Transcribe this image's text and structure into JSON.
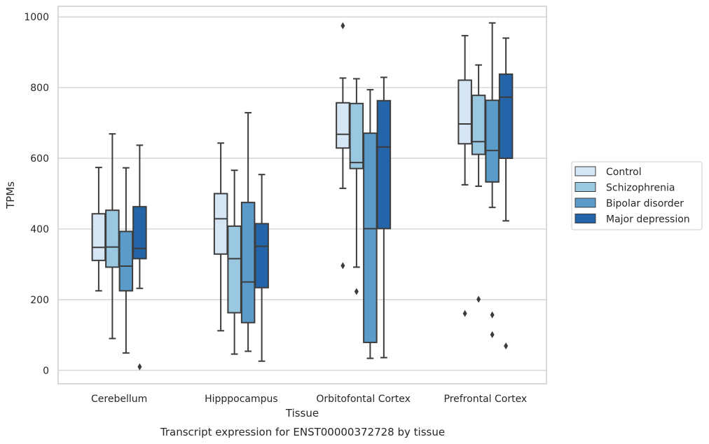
{
  "chart_data": {
    "type": "box",
    "title": "Transcript expression for ENST00000372728 by tissue",
    "xlabel": "Tissue",
    "ylabel": "TPMs",
    "ylim": [
      -38,
      1030
    ],
    "yticks": [
      0,
      200,
      400,
      600,
      800,
      1000
    ],
    "grid": "horizontal",
    "legend_position": "right",
    "categories": [
      "Cerebellum",
      "Hipppocampus",
      "Orbitofontal Cortex",
      "Prefrontal Cortex"
    ],
    "series": [
      {
        "name": "Control",
        "color": "#d6e6f4",
        "boxes": [
          {
            "whisker_low": 225,
            "q1": 311,
            "median": 348,
            "q3": 443,
            "whisker_high": 574,
            "outliers": []
          },
          {
            "whisker_low": 112,
            "q1": 329,
            "median": 429,
            "q3": 500,
            "whisker_high": 643,
            "outliers": []
          },
          {
            "whisker_low": 515,
            "q1": 629,
            "median": 668,
            "q3": 757,
            "whisker_high": 827,
            "outliers": [
              975,
              296
            ]
          },
          {
            "whisker_low": 525,
            "q1": 641,
            "median": 697,
            "q3": 821,
            "whisker_high": 947,
            "outliers": [
              161
            ]
          }
        ]
      },
      {
        "name": "Schizophrenia",
        "color": "#9ac8e0",
        "boxes": [
          {
            "whisker_low": 90,
            "q1": 292,
            "median": 349,
            "q3": 453,
            "whisker_high": 669,
            "outliers": []
          },
          {
            "whisker_low": 46,
            "q1": 163,
            "median": 316,
            "q3": 408,
            "whisker_high": 566,
            "outliers": []
          },
          {
            "whisker_low": 292,
            "q1": 571,
            "median": 588,
            "q3": 755,
            "whisker_high": 825,
            "outliers": [
              223
            ]
          },
          {
            "whisker_low": 521,
            "q1": 611,
            "median": 647,
            "q3": 778,
            "whisker_high": 864,
            "outliers": [
              201
            ]
          }
        ]
      },
      {
        "name": "Bipolar disorder",
        "color": "#5a9bc9",
        "boxes": [
          {
            "whisker_low": 49,
            "q1": 225,
            "median": 295,
            "q3": 393,
            "whisker_high": 573,
            "outliers": []
          },
          {
            "whisker_low": 54,
            "q1": 135,
            "median": 250,
            "q3": 475,
            "whisker_high": 729,
            "outliers": []
          },
          {
            "whisker_low": 34,
            "q1": 79,
            "median": 401,
            "q3": 671,
            "whisker_high": 794,
            "outliers": []
          },
          {
            "whisker_low": 461,
            "q1": 533,
            "median": 622,
            "q3": 764,
            "whisker_high": 983,
            "outliers": [
              157,
              101
            ]
          }
        ]
      },
      {
        "name": "Major depression",
        "color": "#2464a8",
        "boxes": [
          {
            "whisker_low": 232,
            "q1": 316,
            "median": 345,
            "q3": 463,
            "whisker_high": 637,
            "outliers": [
              10
            ]
          },
          {
            "whisker_low": 26,
            "q1": 234,
            "median": 351,
            "q3": 415,
            "whisker_high": 554,
            "outliers": []
          },
          {
            "whisker_low": 36,
            "q1": 401,
            "median": 632,
            "q3": 763,
            "whisker_high": 829,
            "outliers": []
          },
          {
            "whisker_low": 423,
            "q1": 600,
            "median": 773,
            "q3": 838,
            "whisker_high": 940,
            "outliers": [
              69
            ]
          }
        ]
      }
    ]
  }
}
